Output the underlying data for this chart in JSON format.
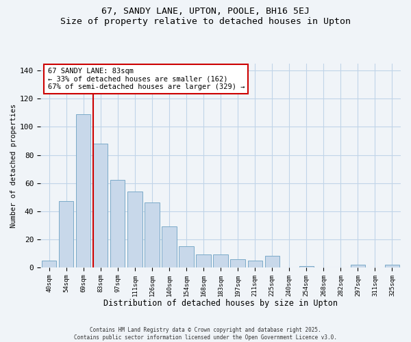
{
  "title": "67, SANDY LANE, UPTON, POOLE, BH16 5EJ",
  "subtitle": "Size of property relative to detached houses in Upton",
  "xlabel": "Distribution of detached houses by size in Upton",
  "ylabel": "Number of detached properties",
  "categories": [
    "40sqm",
    "54sqm",
    "69sqm",
    "83sqm",
    "97sqm",
    "111sqm",
    "126sqm",
    "140sqm",
    "154sqm",
    "168sqm",
    "183sqm",
    "197sqm",
    "211sqm",
    "225sqm",
    "240sqm",
    "254sqm",
    "268sqm",
    "282sqm",
    "297sqm",
    "311sqm",
    "325sqm"
  ],
  "values": [
    5,
    47,
    109,
    88,
    62,
    54,
    46,
    29,
    15,
    9,
    9,
    6,
    5,
    8,
    0,
    1,
    0,
    0,
    2,
    0,
    2
  ],
  "bar_color": "#c8d8ea",
  "bar_edge_color": "#7aaac8",
  "vline_x_index": 3,
  "vline_color": "#cc0000",
  "annotation_line1": "67 SANDY LANE: 83sqm",
  "annotation_line2": "← 33% of detached houses are smaller (162)",
  "annotation_line3": "67% of semi-detached houses are larger (329) →",
  "annotation_box_color": "#ffffff",
  "annotation_box_edge": "#cc0000",
  "ylim": [
    0,
    145
  ],
  "yticks": [
    0,
    20,
    40,
    60,
    80,
    100,
    120,
    140
  ],
  "background_color": "#f0f4f8",
  "grid_color": "#c0d4e8",
  "footer_line1": "Contains HM Land Registry data © Crown copyright and database right 2025.",
  "footer_line2": "Contains public sector information licensed under the Open Government Licence v3.0."
}
